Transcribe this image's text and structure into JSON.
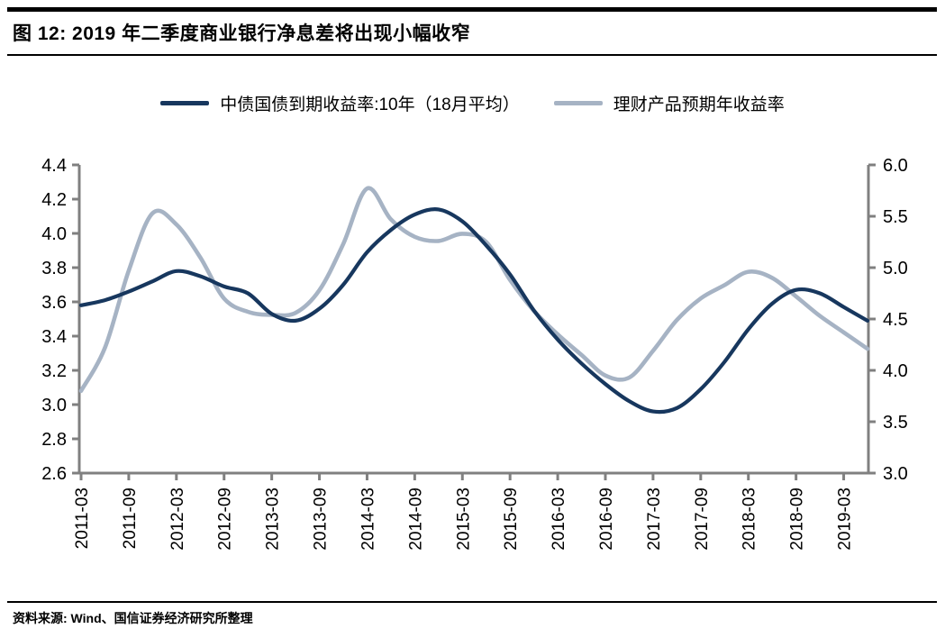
{
  "footer": {
    "source_label": "资料来源: Wind、国信证券经济研究所整理"
  },
  "chart_data": {
    "type": "line",
    "title": "图 12:  2019 年二季度商业银行净息差将出现小幅收窄",
    "grid": false,
    "legend_position": "top",
    "axis_color": "#808080",
    "x_quarterly": [
      "2011-03",
      "2011-06",
      "2011-09",
      "2011-12",
      "2012-03",
      "2012-06",
      "2012-09",
      "2012-12",
      "2013-03",
      "2013-06",
      "2013-09",
      "2013-12",
      "2014-03",
      "2014-06",
      "2014-09",
      "2014-12",
      "2015-03",
      "2015-06",
      "2015-09",
      "2015-12",
      "2016-03",
      "2016-06",
      "2016-09",
      "2016-12",
      "2017-03",
      "2017-06",
      "2017-09",
      "2017-12",
      "2018-03",
      "2018-06",
      "2018-09",
      "2018-12",
      "2019-03",
      "2019-06"
    ],
    "x_tick_labels": [
      "2011-03",
      "2011-09",
      "2012-03",
      "2012-09",
      "2013-03",
      "2013-09",
      "2014-03",
      "2014-09",
      "2015-03",
      "2015-09",
      "2016-03",
      "2016-09",
      "2017-03",
      "2017-09",
      "2018-03",
      "2018-09",
      "2019-03"
    ],
    "left_axis": {
      "min": 2.6,
      "max": 4.4,
      "step": 0.2,
      "tick_labels": [
        "4.4",
        "4.2",
        "4.0",
        "3.8",
        "3.6",
        "3.4",
        "3.2",
        "3.0",
        "2.8",
        "2.6"
      ]
    },
    "right_axis": {
      "min": 3.0,
      "max": 6.0,
      "step": 0.5,
      "tick_labels": [
        "6.0",
        "5.5",
        "5.0",
        "4.5",
        "4.0",
        "3.5",
        "3.0"
      ]
    },
    "series": [
      {
        "name": "中债国债到期收益率:10年（18月平均）",
        "axis": "left",
        "color": "#17375e",
        "values": [
          3.58,
          3.61,
          3.66,
          3.72,
          3.78,
          3.75,
          3.69,
          3.65,
          3.53,
          3.49,
          3.56,
          3.7,
          3.89,
          4.02,
          4.11,
          4.14,
          4.07,
          3.93,
          3.76,
          3.55,
          3.38,
          3.24,
          3.12,
          3.02,
          2.96,
          2.98,
          3.09,
          3.25,
          3.44,
          3.59,
          3.67,
          3.65,
          3.57,
          3.49
        ]
      },
      {
        "name": "理财产品预期年收益率",
        "axis": "right",
        "color": "#a6b3c4",
        "values": [
          3.8,
          4.22,
          4.97,
          5.53,
          5.42,
          5.1,
          4.7,
          4.57,
          4.54,
          4.56,
          4.78,
          5.23,
          5.77,
          5.47,
          5.3,
          5.26,
          5.33,
          5.25,
          4.88,
          4.58,
          4.35,
          4.15,
          3.95,
          3.93,
          4.19,
          4.49,
          4.7,
          4.83,
          4.96,
          4.9,
          4.72,
          4.53,
          4.37,
          4.21
        ]
      }
    ]
  }
}
